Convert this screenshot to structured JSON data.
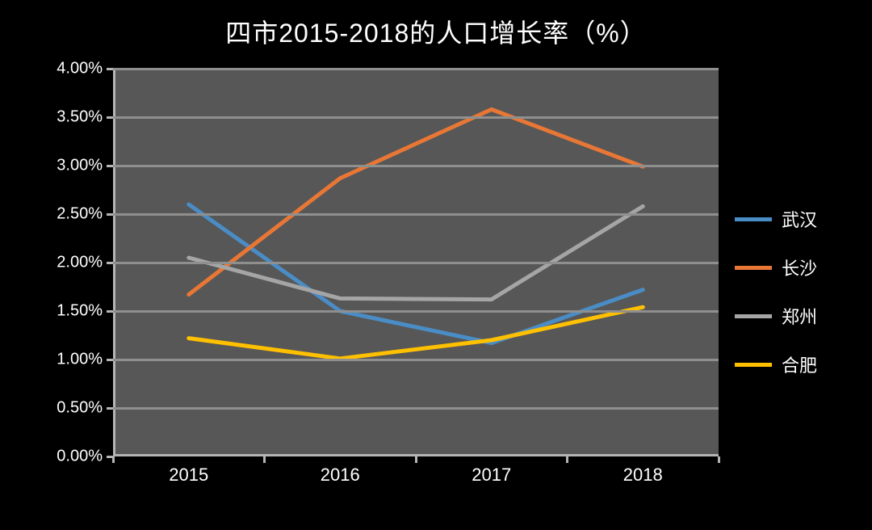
{
  "title": "四市2015-2018的人口增长率（%）",
  "chart": {
    "type": "line",
    "background_color": "#000000",
    "plot_background_color": "#575757",
    "grid_color": "#8f8f8f",
    "axis_color": "#b5b5b5",
    "text_color": "#ffffff",
    "title_fontsize": 32,
    "label_fontsize": 20,
    "xlabel_fontsize": 22,
    "line_width": 5,
    "ylim": [
      0.0,
      4.0
    ],
    "ytick_step": 0.5,
    "y_ticks": [
      "0.00%",
      "0.50%",
      "1.00%",
      "1.50%",
      "2.00%",
      "2.50%",
      "3.00%",
      "3.50%",
      "4.00%"
    ],
    "x_categories": [
      "2015",
      "2016",
      "2017",
      "2018"
    ],
    "series": [
      {
        "name": "武汉",
        "color": "#4a8dc6",
        "values": [
          2.6,
          1.5,
          1.17,
          1.72
        ]
      },
      {
        "name": "长沙",
        "color": "#e87736",
        "values": [
          1.67,
          2.87,
          3.58,
          2.99
        ]
      },
      {
        "name": "郑州",
        "color": "#a5a5a5",
        "values": [
          2.05,
          1.63,
          1.62,
          2.58
        ]
      },
      {
        "name": "合肥",
        "color": "#ffc000",
        "values": [
          1.22,
          1.01,
          1.2,
          1.54
        ]
      }
    ]
  }
}
